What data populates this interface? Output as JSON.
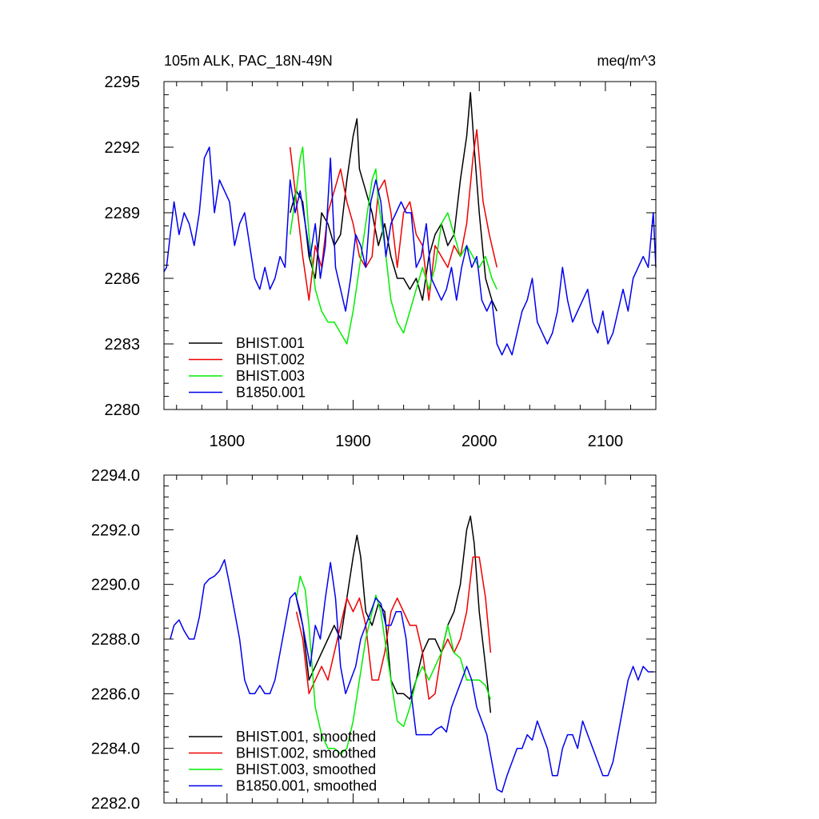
{
  "colors": {
    "BHIST.001": "#000000",
    "BHIST.002": "#ee0000",
    "BHIST.003": "#00ee00",
    "B1850.001": "#0000ee"
  },
  "chart_data": [
    {
      "type": "line",
      "title": "105m ALK, PAC_18N-49N",
      "units": "meq/m^3",
      "xlim": [
        1750,
        2140
      ],
      "ylim": [
        2280,
        2295
      ],
      "xticks": [
        1800,
        1900,
        2000,
        2100
      ],
      "xtick_labels": [
        "1800",
        "1900",
        "2000",
        "2100"
      ],
      "yticks": [
        2280,
        2283,
        2286,
        2289,
        2292,
        2295
      ],
      "ytick_labels": [
        "2280",
        "2283",
        "2286",
        "2289",
        "2292",
        "2295"
      ],
      "legend_position": "bottom-left",
      "series": [
        {
          "name": "BHIST.001",
          "x": [
            1850,
            1855,
            1860,
            1865,
            1870,
            1875,
            1880,
            1885,
            1890,
            1895,
            1900,
            1903,
            1905,
            1910,
            1915,
            1920,
            1925,
            1930,
            1935,
            1940,
            1945,
            1950,
            1955,
            1960,
            1965,
            1970,
            1975,
            1980,
            1985,
            1990,
            1993,
            1996,
            2000,
            2005,
            2010,
            2014
          ],
          "values": [
            2289.0,
            2290.0,
            2289.5,
            2287.0,
            2286.0,
            2289.0,
            2288.5,
            2287.5,
            2288.0,
            2290.5,
            2292.5,
            2293.3,
            2291.0,
            2290.0,
            2289.0,
            2287.5,
            2288.5,
            2287.0,
            2286.0,
            2286.0,
            2285.5,
            2286.0,
            2285.0,
            2287.0,
            2288.0,
            2288.5,
            2287.5,
            2288.0,
            2290.5,
            2292.5,
            2294.5,
            2292.0,
            2289.0,
            2286.0,
            2285.0,
            2284.5
          ]
        },
        {
          "name": "BHIST.002",
          "x": [
            1850,
            1855,
            1860,
            1865,
            1870,
            1875,
            1880,
            1885,
            1890,
            1895,
            1900,
            1905,
            1910,
            1915,
            1920,
            1925,
            1930,
            1935,
            1940,
            1945,
            1950,
            1955,
            1960,
            1965,
            1970,
            1975,
            1980,
            1985,
            1990,
            1995,
            1998,
            2003,
            2008,
            2014
          ],
          "values": [
            2292.0,
            2289.5,
            2287.0,
            2285.0,
            2287.5,
            2286.5,
            2289.0,
            2290.0,
            2291.0,
            2289.5,
            2288.5,
            2287.0,
            2286.5,
            2287.0,
            2290.0,
            2290.5,
            2289.0,
            2286.5,
            2289.0,
            2289.5,
            2288.0,
            2287.5,
            2285.0,
            2287.5,
            2287.0,
            2286.5,
            2287.5,
            2287.0,
            2288.5,
            2291.5,
            2292.8,
            2289.5,
            2288.0,
            2286.5
          ]
        },
        {
          "name": "BHIST.003",
          "x": [
            1850,
            1855,
            1858,
            1860,
            1865,
            1870,
            1875,
            1880,
            1885,
            1890,
            1895,
            1900,
            1905,
            1910,
            1915,
            1918,
            1920,
            1925,
            1930,
            1935,
            1940,
            1945,
            1950,
            1955,
            1960,
            1965,
            1970,
            1975,
            1980,
            1985,
            1990,
            1995,
            2000,
            2005,
            2010,
            2014
          ],
          "values": [
            2288.0,
            2290.0,
            2291.5,
            2292.0,
            2288.0,
            2285.5,
            2284.5,
            2284.0,
            2284.0,
            2283.5,
            2283.0,
            2284.5,
            2286.5,
            2288.5,
            2290.5,
            2291.0,
            2289.5,
            2287.5,
            2285.0,
            2284.0,
            2283.5,
            2284.5,
            2285.5,
            2286.5,
            2285.5,
            2286.5,
            2288.5,
            2289.0,
            2288.0,
            2287.0,
            2287.5,
            2287.0,
            2286.5,
            2287.0,
            2286.0,
            2285.5
          ]
        },
        {
          "name": "B1850.001",
          "x": [
            1750,
            1752,
            1755,
            1758,
            1762,
            1766,
            1770,
            1774,
            1778,
            1782,
            1786,
            1790,
            1794,
            1798,
            1802,
            1806,
            1810,
            1814,
            1818,
            1822,
            1826,
            1830,
            1834,
            1838,
            1842,
            1846,
            1850,
            1854,
            1858,
            1862,
            1866,
            1870,
            1874,
            1878,
            1882,
            1886,
            1890,
            1894,
            1898,
            1902,
            1906,
            1910,
            1914,
            1918,
            1922,
            1926,
            1930,
            1934,
            1938,
            1942,
            1946,
            1950,
            1954,
            1958,
            1962,
            1966,
            1970,
            1974,
            1978,
            1982,
            1986,
            1990,
            1994,
            1998,
            2002,
            2006,
            2010,
            2014,
            2018,
            2022,
            2026,
            2030,
            2034,
            2038,
            2042,
            2046,
            2050,
            2054,
            2058,
            2062,
            2066,
            2070,
            2074,
            2078,
            2082,
            2086,
            2090,
            2094,
            2098,
            2102,
            2106,
            2110,
            2114,
            2118,
            2122,
            2126,
            2130,
            2134,
            2138,
            2140
          ],
          "values": [
            2286.3,
            2286.5,
            2288.0,
            2289.5,
            2288.0,
            2289.0,
            2288.5,
            2287.5,
            2289.0,
            2291.5,
            2292.0,
            2289.0,
            2290.5,
            2290.0,
            2289.5,
            2287.5,
            2288.5,
            2289.0,
            2287.5,
            2286.0,
            2285.5,
            2286.5,
            2285.5,
            2286.0,
            2287.0,
            2286.5,
            2290.5,
            2289.0,
            2290.0,
            2288.5,
            2287.0,
            2288.5,
            2286.0,
            2287.5,
            2291.5,
            2286.5,
            2285.5,
            2284.5,
            2286.0,
            2288.0,
            2287.5,
            2286.5,
            2289.5,
            2290.5,
            2289.5,
            2287.0,
            2288.5,
            2289.0,
            2289.5,
            2289.0,
            2289.0,
            2286.5,
            2287.0,
            2288.5,
            2286.0,
            2285.5,
            2285.0,
            2285.5,
            2286.5,
            2285.0,
            2286.5,
            2287.5,
            2286.5,
            2287.0,
            2285.0,
            2284.5,
            2285.0,
            2283.0,
            2282.5,
            2283.0,
            2282.5,
            2283.5,
            2284.5,
            2285.0,
            2286.0,
            2284.0,
            2283.5,
            2283.0,
            2283.5,
            2284.5,
            2286.5,
            2285.0,
            2284.0,
            2284.5,
            2285.0,
            2285.5,
            2284.0,
            2283.5,
            2284.5,
            2283.0,
            2283.5,
            2284.5,
            2285.5,
            2284.5,
            2286.0,
            2286.5,
            2287.0,
            2286.5,
            2289.0,
            2286.5
          ]
        }
      ]
    },
    {
      "type": "line",
      "title": "",
      "units": "",
      "xlim": [
        1750,
        2140
      ],
      "ylim": [
        2282,
        2294
      ],
      "xticks": [
        1800,
        1900,
        2000,
        2100
      ],
      "xtick_labels": [],
      "yticks": [
        2282,
        2284,
        2286,
        2288,
        2290,
        2292,
        2294
      ],
      "ytick_labels": [
        "2282.0",
        "2284.0",
        "2286.0",
        "2288.0",
        "2290.0",
        "2292.0",
        "2294.0"
      ],
      "legend_position": "bottom-left",
      "series": [
        {
          "name": "BHIST.001, smoothed",
          "x": [
            1855,
            1860,
            1865,
            1870,
            1875,
            1880,
            1885,
            1890,
            1895,
            1900,
            1903,
            1906,
            1910,
            1915,
            1920,
            1925,
            1930,
            1935,
            1940,
            1945,
            1950,
            1955,
            1960,
            1965,
            1970,
            1975,
            1980,
            1985,
            1990,
            1993,
            1996,
            2000,
            2005,
            2009
          ],
          "values": [
            2289.5,
            2288.5,
            2286.5,
            2287.0,
            2287.5,
            2288.0,
            2288.5,
            2288.0,
            2289.5,
            2291.0,
            2291.8,
            2291.0,
            2289.0,
            2288.5,
            2289.3,
            2289.0,
            2286.5,
            2286.0,
            2286.0,
            2285.8,
            2286.5,
            2287.5,
            2288.0,
            2288.0,
            2287.5,
            2288.5,
            2289.0,
            2290.0,
            2292.0,
            2292.5,
            2291.5,
            2289.0,
            2287.0,
            2285.3
          ]
        },
        {
          "name": "BHIST.002, smoothed",
          "x": [
            1855,
            1860,
            1865,
            1870,
            1875,
            1880,
            1885,
            1890,
            1895,
            1900,
            1905,
            1910,
            1915,
            1920,
            1925,
            1930,
            1935,
            1940,
            1945,
            1950,
            1955,
            1960,
            1965,
            1970,
            1975,
            1980,
            1985,
            1990,
            1995,
            2000,
            2005,
            2009
          ],
          "values": [
            2289.0,
            2288.0,
            2286.0,
            2286.5,
            2287.0,
            2286.5,
            2287.5,
            2288.5,
            2289.5,
            2289.0,
            2289.5,
            2288.5,
            2286.5,
            2286.5,
            2287.5,
            2289.0,
            2289.5,
            2289.0,
            2288.5,
            2288.5,
            2287.5,
            2285.8,
            2286.0,
            2287.5,
            2288.0,
            2287.5,
            2288.0,
            2289.0,
            2291.0,
            2291.0,
            2289.5,
            2287.5
          ]
        },
        {
          "name": "BHIST.003, smoothed",
          "x": [
            1855,
            1858,
            1862,
            1865,
            1870,
            1875,
            1880,
            1885,
            1890,
            1895,
            1900,
            1905,
            1910,
            1915,
            1918,
            1922,
            1925,
            1930,
            1935,
            1940,
            1945,
            1950,
            1955,
            1960,
            1965,
            1970,
            1975,
            1980,
            1985,
            1990,
            1995,
            2000,
            2005,
            2009
          ],
          "values": [
            2289.5,
            2290.3,
            2289.8,
            2288.5,
            2285.5,
            2284.5,
            2284.0,
            2284.0,
            2283.8,
            2284.0,
            2285.0,
            2286.5,
            2288.0,
            2289.0,
            2289.6,
            2289.0,
            2288.0,
            2286.5,
            2285.0,
            2284.8,
            2285.5,
            2286.5,
            2287.0,
            2286.5,
            2287.0,
            2287.5,
            2288.5,
            2287.5,
            2287.3,
            2286.5,
            2286.5,
            2286.5,
            2286.3,
            2285.8
          ]
        },
        {
          "name": "B1850.001, smoothed",
          "x": [
            1755,
            1758,
            1762,
            1766,
            1770,
            1774,
            1778,
            1782,
            1786,
            1790,
            1794,
            1798,
            1802,
            1806,
            1810,
            1814,
            1818,
            1822,
            1826,
            1830,
            1834,
            1838,
            1842,
            1846,
            1850,
            1854,
            1858,
            1862,
            1866,
            1870,
            1874,
            1878,
            1882,
            1886,
            1890,
            1894,
            1898,
            1902,
            1906,
            1910,
            1914,
            1918,
            1922,
            1926,
            1930,
            1934,
            1938,
            1942,
            1946,
            1950,
            1954,
            1958,
            1962,
            1966,
            1970,
            1974,
            1978,
            1982,
            1986,
            1990,
            1994,
            1998,
            2002,
            2006,
            2010,
            2014,
            2018,
            2022,
            2026,
            2030,
            2034,
            2038,
            2042,
            2046,
            2050,
            2054,
            2058,
            2062,
            2066,
            2070,
            2074,
            2078,
            2082,
            2086,
            2090,
            2094,
            2098,
            2102,
            2106,
            2110,
            2114,
            2118,
            2122,
            2126,
            2130,
            2134,
            2138
          ],
          "values": [
            2288.0,
            2288.5,
            2288.7,
            2288.3,
            2288.0,
            2288.0,
            2288.8,
            2290.0,
            2290.2,
            2290.3,
            2290.5,
            2290.9,
            2290.0,
            2289.0,
            2288.0,
            2286.5,
            2286.0,
            2286.0,
            2286.3,
            2286.0,
            2286.0,
            2286.5,
            2287.5,
            2288.5,
            2289.5,
            2289.7,
            2289.0,
            2288.0,
            2287.0,
            2288.5,
            2288.0,
            2289.5,
            2290.8,
            2289.5,
            2287.0,
            2286.0,
            2286.5,
            2287.0,
            2288.0,
            2288.5,
            2289.0,
            2289.5,
            2289.3,
            2288.5,
            2288.5,
            2289.0,
            2289.0,
            2288.0,
            2286.0,
            2284.5,
            2284.5,
            2284.5,
            2284.5,
            2284.7,
            2284.8,
            2284.6,
            2285.5,
            2286.0,
            2286.5,
            2287.0,
            2286.5,
            2285.5,
            2285.0,
            2284.5,
            2283.5,
            2282.5,
            2282.4,
            2283.0,
            2283.5,
            2284.0,
            2284.0,
            2284.5,
            2284.3,
            2285.0,
            2284.5,
            2284.0,
            2283.0,
            2283.0,
            2284.0,
            2284.5,
            2284.5,
            2284.0,
            2285.0,
            2284.5,
            2284.0,
            2283.5,
            2283.0,
            2283.0,
            2283.5,
            2284.5,
            2285.5,
            2286.5,
            2287.0,
            2286.5,
            2287.0,
            2286.8,
            2286.8
          ]
        }
      ]
    }
  ]
}
